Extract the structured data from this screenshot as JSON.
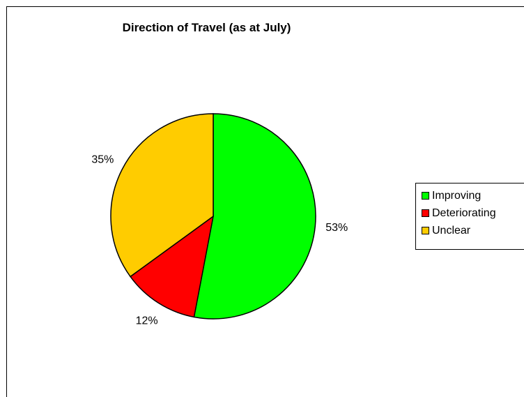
{
  "chart_data": {
    "type": "pie",
    "title": "Direction of Travel (as at July)",
    "categories": [
      "Improving",
      "Deteriorating",
      "Unclear"
    ],
    "values": [
      53,
      12,
      35
    ],
    "data_labels": [
      "53%",
      "12%",
      "35%"
    ],
    "colors": [
      "#00ff00",
      "#ff0000",
      "#ffcc00"
    ],
    "start_angle": "12 o'clock",
    "direction": "clockwise",
    "legend_position": "right",
    "grid": false
  }
}
